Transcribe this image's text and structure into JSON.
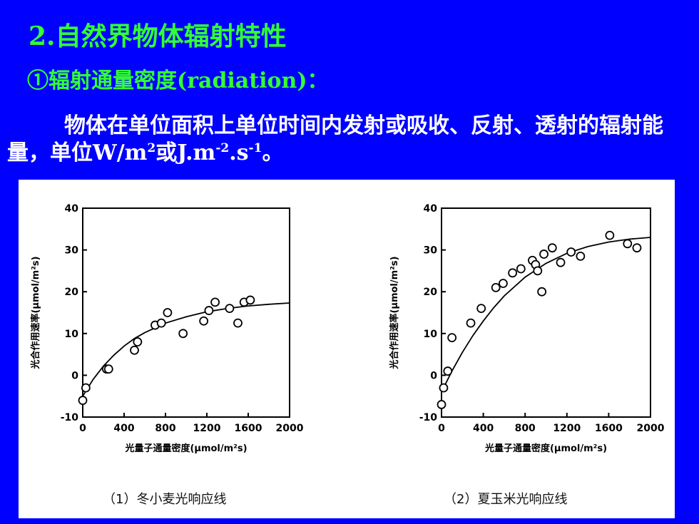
{
  "slide": {
    "title": "2.自然界物体辐射特性",
    "subtitle": "①辐射通量密度(radiation)：",
    "para_text_1": "物体在单位面积上单位时间内发射或吸收、反射、透射的辐射能量，单位W/m",
    "para_sup_1": "2",
    "para_text_2": "或J.m",
    "para_sup_2": "-2",
    "para_text_3": ".s",
    "para_sup_3": "-1",
    "para_text_4": "。"
  },
  "colors": {
    "background": "#0000ff",
    "heading": "#33ff33",
    "text": "#ffffff",
    "figure_bg": "#ffffff"
  },
  "chart_data": [
    {
      "type": "scatter",
      "caption": "（1）冬小麦光响应线",
      "xlabel": "光量子通量密度(μmol/m²s)",
      "ylabel": "光合作用速率(μmol/m²s)",
      "xlim": [
        0,
        2000
      ],
      "ylim": [
        -10,
        40
      ],
      "xticks": [
        "0",
        "400",
        "800",
        "1200",
        "1600",
        "2000"
      ],
      "yticks": [
        "-10",
        "0",
        "10",
        "20",
        "30",
        "40"
      ],
      "points": [
        {
          "x": 0,
          "y": -6
        },
        {
          "x": 30,
          "y": -3
        },
        {
          "x": 230,
          "y": 1.5
        },
        {
          "x": 250,
          "y": 1.5
        },
        {
          "x": 500,
          "y": 6
        },
        {
          "x": 530,
          "y": 8
        },
        {
          "x": 700,
          "y": 12
        },
        {
          "x": 760,
          "y": 12.5
        },
        {
          "x": 820,
          "y": 15
        },
        {
          "x": 970,
          "y": 10
        },
        {
          "x": 1170,
          "y": 13
        },
        {
          "x": 1220,
          "y": 15.5
        },
        {
          "x": 1280,
          "y": 17.5
        },
        {
          "x": 1420,
          "y": 16
        },
        {
          "x": 1500,
          "y": 12.5
        },
        {
          "x": 1560,
          "y": 17.5
        },
        {
          "x": 1620,
          "y": 18
        }
      ],
      "fit_curve": [
        {
          "x": 0,
          "y": -5
        },
        {
          "x": 100,
          "y": -1
        },
        {
          "x": 200,
          "y": 2.2
        },
        {
          "x": 300,
          "y": 4.8
        },
        {
          "x": 400,
          "y": 7
        },
        {
          "x": 500,
          "y": 8.8
        },
        {
          "x": 600,
          "y": 10.2
        },
        {
          "x": 800,
          "y": 12.5
        },
        {
          "x": 1000,
          "y": 14
        },
        {
          "x": 1200,
          "y": 15.2
        },
        {
          "x": 1400,
          "y": 16
        },
        {
          "x": 1600,
          "y": 16.6
        },
        {
          "x": 1800,
          "y": 17
        },
        {
          "x": 2000,
          "y": 17.3
        }
      ]
    },
    {
      "type": "scatter",
      "caption": "（2）夏玉米光响应线",
      "xlabel": "光量子通量密度(μmol/m²s)",
      "ylabel": "光合作用速率(μmol/m²s)",
      "xlim": [
        0,
        2000
      ],
      "ylim": [
        -10,
        40
      ],
      "xticks": [
        "0",
        "400",
        "800",
        "1200",
        "1600",
        "2000"
      ],
      "yticks": [
        "-10",
        "0",
        "10",
        "20",
        "30",
        "40"
      ],
      "points": [
        {
          "x": 0,
          "y": -7
        },
        {
          "x": 20,
          "y": -3
        },
        {
          "x": 60,
          "y": 1
        },
        {
          "x": 100,
          "y": 9
        },
        {
          "x": 280,
          "y": 12.5
        },
        {
          "x": 380,
          "y": 16
        },
        {
          "x": 520,
          "y": 21
        },
        {
          "x": 590,
          "y": 22
        },
        {
          "x": 680,
          "y": 24.5
        },
        {
          "x": 760,
          "y": 25.5
        },
        {
          "x": 870,
          "y": 27.5
        },
        {
          "x": 900,
          "y": 26.5
        },
        {
          "x": 920,
          "y": 25
        },
        {
          "x": 960,
          "y": 20
        },
        {
          "x": 980,
          "y": 29
        },
        {
          "x": 1060,
          "y": 30.5
        },
        {
          "x": 1140,
          "y": 27
        },
        {
          "x": 1240,
          "y": 29.5
        },
        {
          "x": 1330,
          "y": 28.5
        },
        {
          "x": 1610,
          "y": 33.5
        },
        {
          "x": 1780,
          "y": 31.5
        },
        {
          "x": 1870,
          "y": 30.5
        }
      ],
      "fit_curve": [
        {
          "x": 0,
          "y": -4
        },
        {
          "x": 100,
          "y": 1
        },
        {
          "x": 200,
          "y": 5.5
        },
        {
          "x": 300,
          "y": 9.5
        },
        {
          "x": 400,
          "y": 13
        },
        {
          "x": 500,
          "y": 16.2
        },
        {
          "x": 600,
          "y": 19
        },
        {
          "x": 800,
          "y": 23.5
        },
        {
          "x": 1000,
          "y": 26.8
        },
        {
          "x": 1200,
          "y": 29.2
        },
        {
          "x": 1400,
          "y": 30.8
        },
        {
          "x": 1600,
          "y": 31.9
        },
        {
          "x": 1800,
          "y": 32.6
        },
        {
          "x": 2000,
          "y": 33
        }
      ]
    }
  ]
}
